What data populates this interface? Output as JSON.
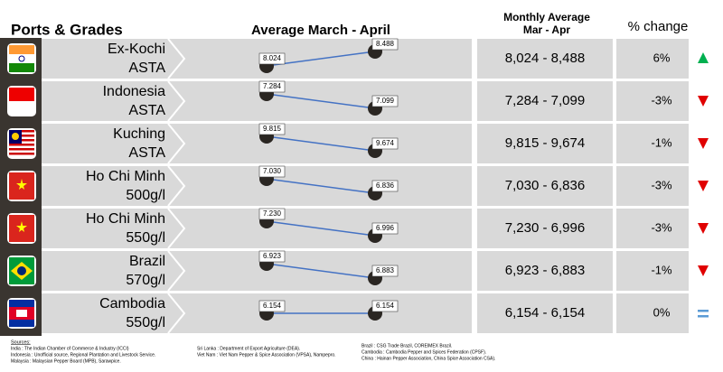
{
  "header": {
    "title": "Ports & Grades",
    "chart_title": "Average March - April",
    "range_title": [
      "Monthly Average",
      "Mar - Apr"
    ],
    "change_title": "% change"
  },
  "rows": [
    {
      "port": "Ex-Kochi",
      "grade": "ASTA",
      "march": "8.024",
      "april": "8.488",
      "range": "8,024 - 8,488",
      "change": "6%",
      "trend": "up"
    },
    {
      "port": "Indonesia",
      "grade": "ASTA",
      "march": "7.284",
      "april": "7.099",
      "range": "7,284 - 7,099",
      "change": "-3%",
      "trend": "down"
    },
    {
      "port": "Kuching",
      "grade": "ASTA",
      "march": "9.815",
      "april": "9.674",
      "range": "9,815 - 9,674",
      "change": "-1%",
      "trend": "down"
    },
    {
      "port": "Ho Chi Minh",
      "grade": "500g/l",
      "march": "7.030",
      "april": "6.836",
      "range": "7,030 - 6,836",
      "change": "-3%",
      "trend": "down"
    },
    {
      "port": "Ho Chi Minh",
      "grade": "550g/l",
      "march": "7.230",
      "april": "6.996",
      "range": "7,230 - 6,996",
      "change": "-3%",
      "trend": "down"
    },
    {
      "port": "Brazil",
      "grade": "570g/l",
      "march": "6.923",
      "april": "6.883",
      "range": "6,923 - 6,883",
      "change": "-1%",
      "trend": "down"
    },
    {
      "port": "Cambodia",
      "grade": "550g/l",
      "march": "6.154",
      "april": "6.154",
      "range": "6,154 - 6,154",
      "change": "0%",
      "trend": "equal"
    }
  ],
  "sources": {
    "title": "Sources:",
    "columns": [
      [
        "India : The Indian Chamber of Commerce & Industry (ICCI)",
        "Indonesia : Unofficial source, Regional Plantation and Livestock Service.",
        "Malaysia : Malaysian Pepper Board (MPB), Sarawpice."
      ],
      [
        "Sri Lanka : Department of Export Agriculture (DEA).",
        "Viet Nam : Viet Nam Pepper & Spice Association (VPSA), Nampepro."
      ],
      [
        "Brazil : CSG Trade Brazil, COREIMEX Brazil.",
        "Cambodia : Cambodia Pepper and Spices Federation (CPSF).",
        "China : Hainan Pepper Association, China Spice Association CSA)."
      ]
    ]
  }
}
